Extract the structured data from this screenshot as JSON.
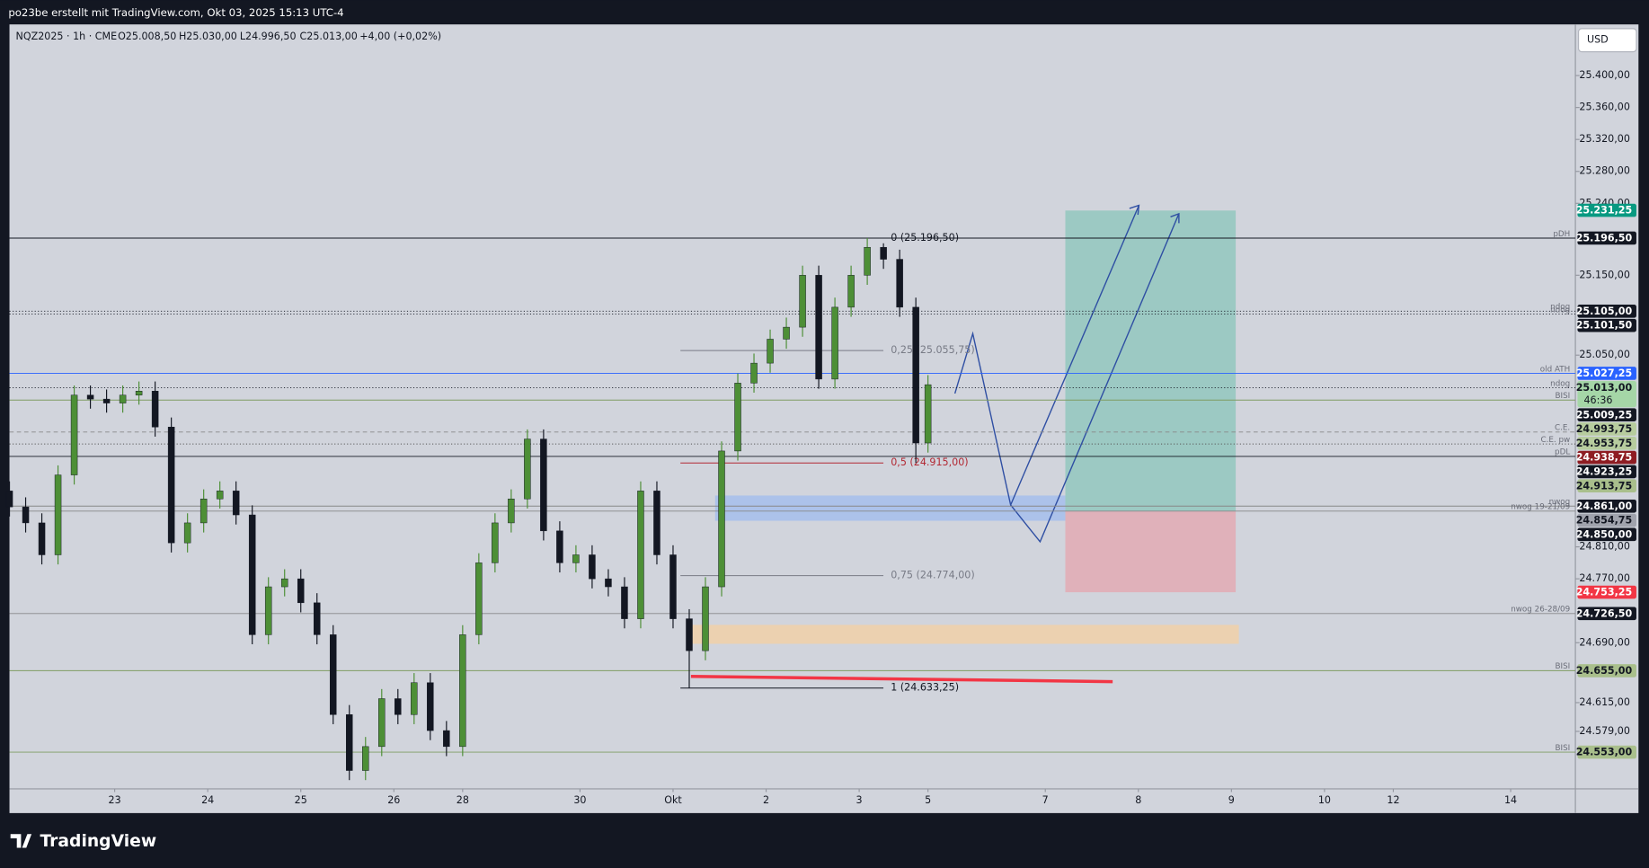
{
  "header": {
    "title": "po23be erstellt mit TradingView.com, Okt 03, 2025 15:13 UTC-4"
  },
  "footer": {
    "brand": "TradingView"
  },
  "toolbar": {
    "currency": "USD"
  },
  "legend": {
    "symbol": "NQZ2025 · 1h · CME",
    "open": "O25.008,50",
    "high": "H25.030,00",
    "low": "L24.996,50",
    "close": "C25.013,00",
    "change": "+4,00 (+0,02%)"
  },
  "chart_data": {
    "type": "candlestick",
    "up_color": "#4d8f36",
    "down_color": "#131722",
    "xlim": [
      0,
      387
    ],
    "ylim": [
      24507,
      25464
    ],
    "xticks": [
      {
        "value": 26,
        "label": "23"
      },
      {
        "value": 49,
        "label": "24"
      },
      {
        "value": 72,
        "label": "25"
      },
      {
        "value": 95,
        "label": "26"
      },
      {
        "value": 112,
        "label": "28"
      },
      {
        "value": 141,
        "label": "30"
      },
      {
        "value": 164,
        "label": "Okt"
      },
      {
        "value": 187,
        "label": "2"
      },
      {
        "value": 210,
        "label": "3"
      },
      {
        "value": 227,
        "label": "5"
      },
      {
        "value": 256,
        "label": "7"
      },
      {
        "value": 279,
        "label": "8"
      },
      {
        "value": 302,
        "label": "9"
      },
      {
        "value": 325,
        "label": "10"
      },
      {
        "value": 342,
        "label": "12"
      },
      {
        "value": 371,
        "label": "14"
      }
    ],
    "yticks": [
      {
        "value": 25400,
        "label": "25.400,00"
      },
      {
        "value": 25360,
        "label": "25.360,00"
      },
      {
        "value": 25320,
        "label": "25.320,00"
      },
      {
        "value": 25280,
        "label": "25.280,00"
      },
      {
        "value": 25240,
        "label": "25.240,00"
      },
      {
        "value": 25150,
        "label": "25.150,00"
      },
      {
        "value": 25050,
        "label": "25.050,00"
      },
      {
        "value": 24810,
        "label": "24.810,00"
      },
      {
        "value": 24770,
        "label": "24.770,00"
      },
      {
        "value": 24690,
        "label": "24.690,00"
      },
      {
        "value": 24615,
        "label": "24.615,00"
      },
      {
        "value": 24579,
        "label": "24.579,00"
      }
    ],
    "x": [
      0,
      4,
      8,
      12,
      16,
      20,
      24,
      28,
      32,
      36,
      40,
      44,
      48,
      52,
      56,
      60,
      64,
      68,
      72,
      76,
      80,
      84,
      88,
      92,
      96,
      100,
      104,
      108,
      112,
      116,
      120,
      124,
      128,
      132,
      136,
      140,
      144,
      148,
      152,
      156,
      160,
      164,
      168,
      172,
      176,
      180,
      184,
      188,
      192,
      196,
      200,
      204,
      208,
      212,
      216,
      220,
      224,
      227
    ],
    "open": [
      24880,
      24860,
      24840,
      24800,
      24900,
      25000,
      24995,
      24990,
      25000,
      25005,
      24960,
      24815,
      24840,
      24870,
      24880,
      24850,
      24700,
      24760,
      24770,
      24740,
      24700,
      24600,
      24530,
      24560,
      24620,
      24600,
      24640,
      24580,
      24560,
      24700,
      24790,
      24840,
      24870,
      24945,
      24830,
      24790,
      24800,
      24770,
      24760,
      24720,
      24880,
      24800,
      24720,
      24680,
      24760,
      24930,
      25015,
      25040,
      25070,
      25085,
      25150,
      25020,
      25110,
      25150,
      25185,
      25170,
      25110,
      24940
    ],
    "high": [
      24892,
      24872,
      24852,
      24912,
      25012,
      25012,
      25007,
      25012,
      25017,
      25017,
      24972,
      24852,
      24882,
      24892,
      24892,
      24862,
      24772,
      24782,
      24782,
      24752,
      24712,
      24612,
      24572,
      24632,
      24632,
      24652,
      24652,
      24592,
      24712,
      24802,
      24852,
      24882,
      24957,
      24957,
      24842,
      24812,
      24812,
      24782,
      24772,
      24892,
      24892,
      24812,
      24732,
      24772,
      24942,
      25027,
      25052,
      25082,
      25097,
      25162,
      25162,
      25122,
      25162,
      25196.5,
      25190,
      25182,
      25122,
      25025
    ],
    "low": [
      24848,
      24828,
      24788,
      24788,
      24888,
      24983,
      24978,
      24978,
      24988,
      24948,
      24803,
      24803,
      24828,
      24858,
      24838,
      24688,
      24688,
      24748,
      24728,
      24688,
      24588,
      24518,
      24518,
      24548,
      24588,
      24588,
      24568,
      24548,
      24548,
      24688,
      24778,
      24828,
      24858,
      24818,
      24778,
      24778,
      24758,
      24748,
      24708,
      24708,
      24788,
      24708,
      24633.25,
      24668,
      24748,
      24918,
      25003,
      25028,
      25058,
      25073,
      25008,
      25008,
      25098,
      25138,
      25158,
      25098,
      24915,
      24928
    ],
    "close": [
      24860,
      24840,
      24800,
      24900,
      25000,
      24995,
      24990,
      25000,
      25005,
      24960,
      24815,
      24840,
      24870,
      24880,
      24850,
      24700,
      24760,
      24770,
      24740,
      24700,
      24600,
      24530,
      24560,
      24620,
      24600,
      24640,
      24580,
      24560,
      24700,
      24790,
      24840,
      24870,
      24945,
      24830,
      24790,
      24800,
      24770,
      24760,
      24720,
      24880,
      24800,
      24720,
      24680,
      24760,
      24930,
      25015,
      25040,
      25070,
      25085,
      25150,
      25020,
      25110,
      25150,
      25185,
      25170,
      25110,
      24940,
      25013
    ],
    "fib": [
      {
        "value": 25196.5,
        "label": "0 (25.196,50)",
        "color": "#131722"
      },
      {
        "value": 25055.75,
        "label": "0,25 (25.055,75)",
        "color": "#787b86"
      },
      {
        "value": 24915,
        "label": "0,5 (24.915,00)",
        "color": "#b22833"
      },
      {
        "value": 24774,
        "label": "0,75 (24.774,00)",
        "color": "#787b86"
      },
      {
        "value": 24633.25,
        "label": "1 (24.633,25)",
        "color": "#131722"
      }
    ],
    "levels": [
      {
        "value": 25196.5,
        "label": "pDH",
        "color": "#131722",
        "style": "solid"
      },
      {
        "value": 25105,
        "label": "ndog",
        "color": "#131722",
        "style": "dotted"
      },
      {
        "value": 25101.5,
        "label": "ndog",
        "color": "#131722",
        "style": "dotted"
      },
      {
        "value": 25027.25,
        "label": "old ATH",
        "color": "#2962ff",
        "style": "solid"
      },
      {
        "value": 25009.25,
        "label": "ndog",
        "color": "#131722",
        "style": "dotted"
      },
      {
        "value": 24993.75,
        "label": "BISI",
        "color": "#7f9c63",
        "style": "solid"
      },
      {
        "value": 24953.75,
        "label": "C.E.",
        "color": "#888888",
        "style": "dashed"
      },
      {
        "value": 24938.75,
        "label": "C.E. pw",
        "color": "#555555",
        "style": "dotted"
      },
      {
        "value": 24923.25,
        "label": "pDL",
        "color": "#131722",
        "style": "solid"
      },
      {
        "value": 24861,
        "label": "nwog",
        "color": "#888888",
        "style": "solid"
      },
      {
        "value": 24854.75,
        "label": "nwog 19-21/09",
        "color": "#888888",
        "style": "solid"
      },
      {
        "value": 24726.5,
        "label": "nwog 26-28/09",
        "color": "#888888",
        "style": "solid"
      },
      {
        "value": 24655,
        "label": "BISI",
        "color": "#7f9c63",
        "style": "solid"
      },
      {
        "value": 24553,
        "label": "BISI",
        "color": "#7f9c63",
        "style": "solid"
      }
    ],
    "price_tags": [
      {
        "value": 25231.25,
        "label": "25.231,25",
        "color": "#089981",
        "text_color": "#ffffff"
      },
      {
        "value": 25196.5,
        "label": "25.196,50",
        "color": "#131722",
        "text_color": "#ffffff"
      },
      {
        "value": 25105,
        "label": "25.105,00",
        "color": "#131722",
        "text_color": "#ffffff"
      },
      {
        "value": 25101.5,
        "label": "25.101,50",
        "color": "#131722",
        "text_color": "#ffffff"
      },
      {
        "value": 25027.25,
        "label": "25.027,25",
        "color": "#2962ff",
        "text_color": "#ffffff"
      },
      {
        "value": 25013,
        "label": "25.013,00",
        "color": "#a5d6a7",
        "text_color": "#131722",
        "countdown": "46:36"
      },
      {
        "value": 25009.25,
        "label": "25.009,25",
        "color": "#131722",
        "text_color": "#ffffff"
      },
      {
        "value": 24993.75,
        "label": "24.993,75",
        "color": "#b7cc9e",
        "text_color": "#131722"
      },
      {
        "value": 24953.75,
        "label": "24.953,75",
        "color": "#b7cc9e",
        "text_color": "#131722"
      },
      {
        "value": 24938.75,
        "label": "24.938,75",
        "color": "#8e1c22",
        "text_color": "#ffffff"
      },
      {
        "value": 24923.25,
        "label": "24.923,25",
        "color": "#131722",
        "text_color": "#ffffff"
      },
      {
        "value": 24913.75,
        "label": "24.913,75",
        "color": "#a9bf8c",
        "text_color": "#131722"
      },
      {
        "value": 24861,
        "label": "24.861,00",
        "color": "#131722",
        "text_color": "#ffffff"
      },
      {
        "value": 24854.75,
        "label": "24.854,75",
        "color": "#a0a3ad",
        "text_color": "#131722"
      },
      {
        "value": 24850,
        "label": "24.850,00",
        "color": "#131722",
        "text_color": "#ffffff"
      },
      {
        "value": 24753.25,
        "label": "24.753,25",
        "color": "#f23645",
        "text_color": "#ffffff"
      },
      {
        "value": 24726.5,
        "label": "24.726,50",
        "color": "#131722",
        "text_color": "#ffffff"
      },
      {
        "value": 24655,
        "label": "24.655,00",
        "color": "#a9bf8c",
        "text_color": "#131722"
      },
      {
        "value": 24553,
        "label": "24.553,00",
        "color": "#a9bf8c",
        "text_color": "#131722"
      }
    ]
  }
}
